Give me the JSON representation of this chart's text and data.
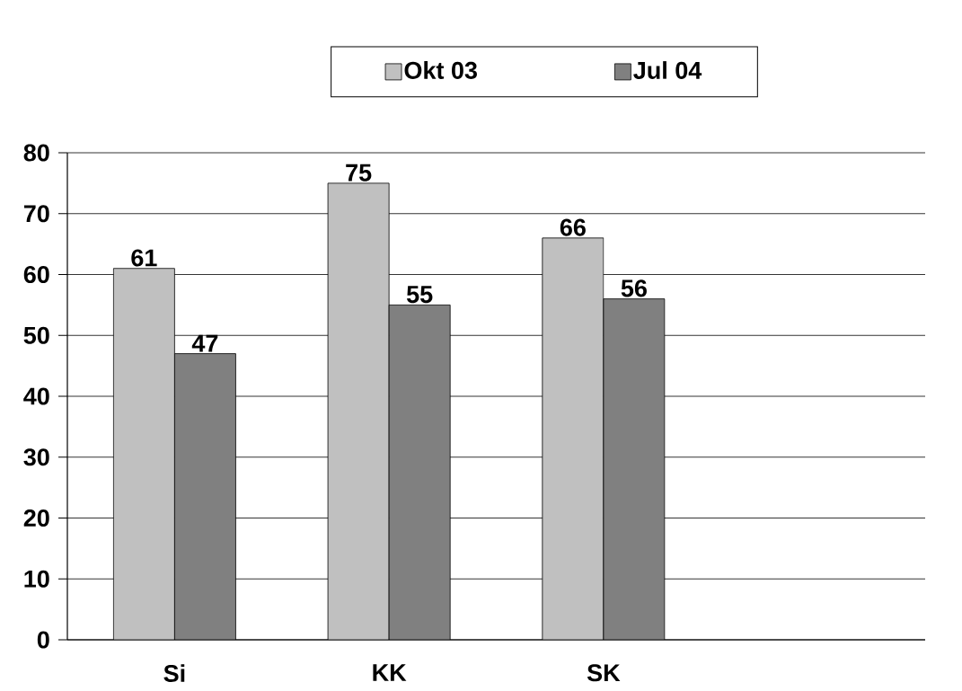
{
  "chart_data": {
    "type": "bar",
    "categories": [
      "Si",
      "KK",
      "SK",
      null
    ],
    "series": [
      {
        "name": "Okt 03",
        "color": "#c0c0c0",
        "values": [
          61,
          75,
          66,
          null
        ]
      },
      {
        "name": "Jul 04",
        "color": "#808080",
        "values": [
          47,
          55,
          56,
          null
        ]
      }
    ],
    "ylim": [
      0,
      80
    ],
    "yticks": [
      0,
      10,
      20,
      30,
      40,
      50,
      60,
      70,
      80
    ],
    "grid": "y",
    "legend": "top",
    "data_labels": true
  }
}
